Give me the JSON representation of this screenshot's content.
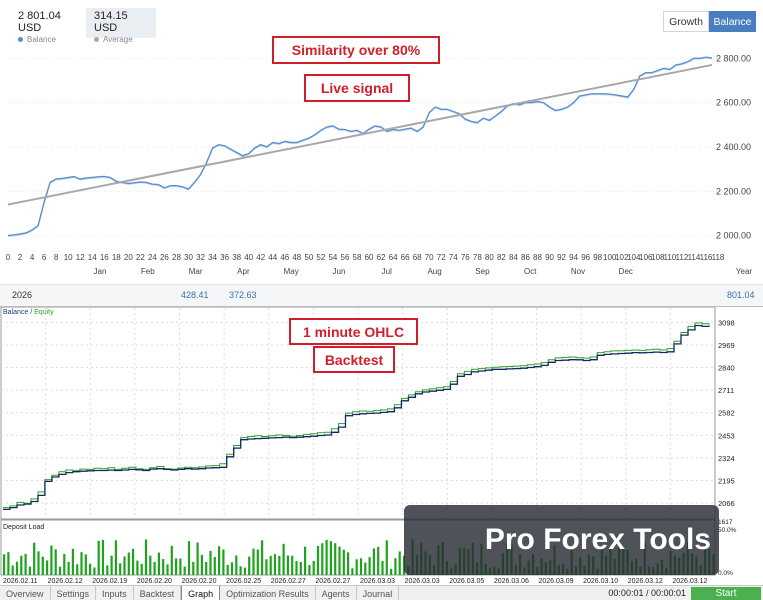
{
  "signal": {
    "balance_value": "2 801.04 USD",
    "balance_label": "Balance",
    "average_value": "314.15 USD",
    "average_label": "Average",
    "growth_button": "Growth",
    "balance_button": "Balance",
    "callout_similarity": "Similarity over 80%",
    "callout_live": "Live signal",
    "balance_color": "#5b8fd0",
    "average_color": "#a8a8a8",
    "year_row": {
      "year": "2026",
      "v1": "428.41",
      "v2": "372.63",
      "v3": "801.04"
    },
    "year_label": "Year"
  },
  "backtest": {
    "legend_balance": "Balance",
    "legend_sep": " / ",
    "legend_equity": "Equity",
    "load_label": "Deposit Load",
    "callout_ohlc": "1 minute OHLC",
    "callout_backtest": "Backtest",
    "watermark": "Pro Forex Tools",
    "load_ticks": [
      "50.0%",
      "0.0%"
    ],
    "load_top_tick": "1617",
    "dates": [
      "2026.02.11",
      "2026.02.12",
      "2026.02.19",
      "2026.02.20",
      "2026.02.20",
      "2026.02.25",
      "2026.02.27",
      "2026.02.27",
      "2026.03.03",
      "2026.03.03",
      "2026.03.05",
      "2026.03.06",
      "2026.03.09",
      "2026.03.10",
      "2026.03.12",
      "2026.03.12"
    ],
    "timer": "00:00:01 / 00:00:01",
    "start_button": "Start",
    "tabs": [
      "Overview",
      "Settings",
      "Inputs",
      "Backtest",
      "Graph",
      "Optimization Results",
      "Agents",
      "Journal"
    ],
    "active_tab": "Graph"
  },
  "chart_data": [
    {
      "type": "line",
      "title": "",
      "xlabel": "",
      "ylabel": "",
      "x_ticks": [
        "0",
        "2",
        "4",
        "6",
        "8",
        "10",
        "12",
        "14",
        "16",
        "18",
        "20",
        "22",
        "24",
        "26",
        "28",
        "30",
        "32",
        "34",
        "36",
        "38",
        "40",
        "42",
        "44",
        "46",
        "48",
        "50",
        "52",
        "54",
        "56",
        "58",
        "60",
        "62",
        "64",
        "66",
        "68",
        "70",
        "72",
        "74",
        "76",
        "78",
        "80",
        "82",
        "84",
        "86",
        "88",
        "90",
        "92",
        "94",
        "96",
        "98",
        "100",
        "102",
        "104",
        "106",
        "108",
        "110",
        "112",
        "114",
        "116",
        "118"
      ],
      "month_labels": [
        "Jan",
        "Feb",
        "Mar",
        "Apr",
        "May",
        "Jun",
        "Jul",
        "Aug",
        "Sep",
        "Oct",
        "Nov",
        "Dec"
      ],
      "y_ticks": [
        "2 000.00",
        "2 200.00",
        "2 400.00",
        "2 600.00",
        "2 800.00"
      ],
      "ylim": [
        1980,
        2860
      ],
      "grid": true,
      "series": [
        {
          "name": "Balance",
          "x": [
            0,
            1,
            2,
            3,
            4,
            5,
            6,
            7,
            8,
            9,
            10,
            11,
            12,
            13,
            14,
            15,
            16,
            17,
            18,
            19,
            20,
            21,
            22,
            23,
            24,
            25,
            26,
            27,
            28,
            29,
            30,
            31,
            32,
            33,
            34,
            35,
            36,
            37,
            38,
            39,
            40,
            41,
            42,
            43,
            44,
            45,
            46,
            47,
            48,
            49,
            50,
            51,
            52,
            53,
            54,
            55,
            56,
            57,
            58,
            59,
            60,
            61,
            62,
            63,
            64,
            65,
            66,
            67,
            68,
            69,
            70,
            71,
            72,
            73,
            74,
            75,
            76,
            77,
            78,
            79,
            80,
            81,
            82,
            83,
            84,
            85,
            86,
            87,
            88,
            89,
            90,
            91,
            92,
            93,
            94,
            95,
            96,
            97,
            98,
            99,
            100,
            101,
            102,
            103,
            104,
            105,
            106,
            107,
            108,
            109,
            110,
            111,
            112,
            113,
            114,
            115,
            116,
            117
          ],
          "values": [
            2000,
            2003,
            2007,
            2012,
            2025,
            2045,
            2150,
            2240,
            2255,
            2258,
            2262,
            2266,
            2255,
            2260,
            2262,
            2265,
            2267,
            2262,
            2245,
            2240,
            2235,
            2238,
            2242,
            2240,
            2232,
            2230,
            2215,
            2225,
            2225,
            2220,
            2210,
            2240,
            2275,
            2330,
            2395,
            2410,
            2405,
            2390,
            2375,
            2360,
            2370,
            2395,
            2410,
            2400,
            2420,
            2415,
            2425,
            2420,
            2420,
            2430,
            2440,
            2455,
            2475,
            2490,
            2495,
            2480,
            2478,
            2470,
            2475,
            2460,
            2480,
            2495,
            2490,
            2470,
            2478,
            2475,
            2480,
            2485,
            2470,
            2490,
            2555,
            2580,
            2570,
            2570,
            2560,
            2550,
            2525,
            2515,
            2510,
            2530,
            2520,
            2540,
            2560,
            2585,
            2595,
            2590,
            2600,
            2600,
            2605,
            2600,
            2580,
            2565,
            2570,
            2580,
            2600,
            2630,
            2635,
            2640,
            2640,
            2640,
            2638,
            2635,
            2630,
            2625,
            2660,
            2720,
            2735,
            2735,
            2745,
            2755,
            2750,
            2770,
            2775,
            2785,
            2800,
            2800,
            2805,
            2801
          ]
        },
        {
          "name": "Average",
          "x": [
            0,
            117
          ],
          "values": [
            2140,
            2770
          ]
        }
      ]
    },
    {
      "type": "line",
      "title": "",
      "y_ticks": [
        "3098",
        "2969",
        "2840",
        "2711",
        "2582",
        "2453",
        "2324",
        "2195",
        "2066"
      ],
      "ylim": [
        2015,
        3140
      ],
      "grid": true,
      "series": [
        {
          "name": "Balance",
          "values": [
            2030,
            2040,
            2055,
            2060,
            2075,
            2110,
            2190,
            2215,
            2230,
            2240,
            2245,
            2248,
            2250,
            2252,
            2252,
            2254,
            2252,
            2255,
            2258,
            2256,
            2252,
            2260,
            2262,
            2258,
            2255,
            2258,
            2262,
            2260,
            2262,
            2266,
            2268,
            2270,
            2330,
            2380,
            2428,
            2432,
            2434,
            2436,
            2438,
            2440,
            2442,
            2440,
            2442,
            2445,
            2448,
            2452,
            2455,
            2470,
            2500,
            2565,
            2572,
            2576,
            2578,
            2580,
            2584,
            2588,
            2610,
            2650,
            2670,
            2690,
            2700,
            2705,
            2710,
            2715,
            2745,
            2790,
            2800,
            2815,
            2820,
            2825,
            2830,
            2830,
            2832,
            2834,
            2836,
            2840,
            2845,
            2852,
            2870,
            2880,
            2882,
            2885,
            2884,
            2880,
            2885,
            2910,
            2915,
            2918,
            2920,
            2922,
            2925,
            2924,
            2926,
            2928,
            2926,
            2930,
            2975,
            3025,
            3055,
            3080,
            3075,
            3072
          ]
        },
        {
          "name": "Equity",
          "values": [
            2040,
            2050,
            2070,
            2065,
            2090,
            2130,
            2200,
            2225,
            2245,
            2255,
            2250,
            2260,
            2258,
            2265,
            2262,
            2268,
            2258,
            2265,
            2270,
            2262,
            2258,
            2268,
            2275,
            2262,
            2260,
            2266,
            2270,
            2268,
            2272,
            2278,
            2280,
            2290,
            2345,
            2395,
            2440,
            2446,
            2450,
            2446,
            2450,
            2455,
            2452,
            2448,
            2452,
            2458,
            2462,
            2468,
            2470,
            2490,
            2520,
            2580,
            2588,
            2592,
            2590,
            2594,
            2598,
            2604,
            2628,
            2664,
            2684,
            2702,
            2712,
            2718,
            2724,
            2730,
            2760,
            2805,
            2818,
            2830,
            2834,
            2838,
            2842,
            2844,
            2846,
            2848,
            2850,
            2856,
            2860,
            2868,
            2884,
            2895,
            2898,
            2900,
            2896,
            2894,
            2900,
            2925,
            2930,
            2935,
            2936,
            2938,
            2940,
            2938,
            2942,
            2944,
            2940,
            2948,
            2990,
            3040,
            3075,
            3095,
            3090,
            3082
          ]
        }
      ]
    }
  ]
}
